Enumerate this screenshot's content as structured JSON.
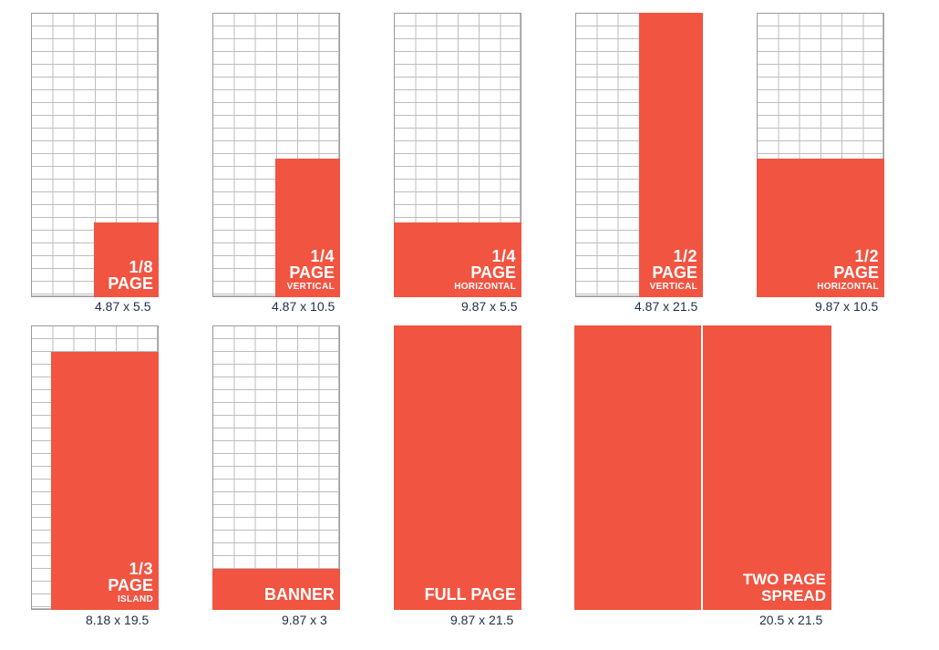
{
  "accent_color": "#f15440",
  "ads": [
    {
      "id": "eighth",
      "line1": "1/8",
      "line2": "PAGE",
      "line3": "",
      "dimensions": "4.87 x 5.5"
    },
    {
      "id": "quarter-vertical",
      "line1": "1/4",
      "line2": "PAGE",
      "line3": "VERTICAL",
      "dimensions": "4.87 x 10.5"
    },
    {
      "id": "quarter-horizontal",
      "line1": "1/4",
      "line2": "PAGE",
      "line3": "HORIZONTAL",
      "dimensions": "9.87 x 5.5"
    },
    {
      "id": "half-vertical",
      "line1": "1/2",
      "line2": "PAGE",
      "line3": "VERTICAL",
      "dimensions": "4.87 x 21.5"
    },
    {
      "id": "half-horizontal",
      "line1": "1/2",
      "line2": "PAGE",
      "line3": "HORIZONTAL",
      "dimensions": "9.87 x 10.5"
    },
    {
      "id": "third-island",
      "line1": "1/3",
      "line2": "PAGE",
      "line3": "ISLAND",
      "dimensions": "8.18 x 19.5"
    },
    {
      "id": "banner",
      "line1": "BANNER",
      "dimensions": "9.87 x 3"
    },
    {
      "id": "full-page",
      "line1": "FULL PAGE",
      "dimensions": "9.87 x 21.5"
    },
    {
      "id": "two-page-spread",
      "line1": "TWO PAGE",
      "line2": "SPREAD",
      "dimensions": "20.5 x 21.5"
    }
  ]
}
